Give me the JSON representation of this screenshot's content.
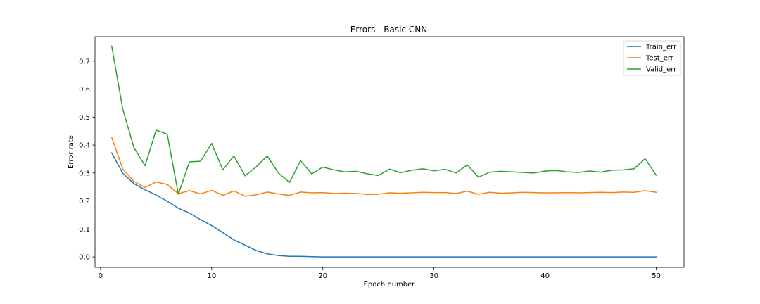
{
  "chart_data": {
    "type": "line",
    "title": "Errors - Basic CNN",
    "xlabel": "Epoch number",
    "ylabel": "Error rate",
    "xlim": [
      -0.5,
      52.5
    ],
    "ylim": [
      -0.0375,
      0.7875
    ],
    "xticks": [
      0,
      10,
      20,
      30,
      40,
      50
    ],
    "yticks": [
      0.0,
      0.1,
      0.2,
      0.3,
      0.4,
      0.5,
      0.6,
      0.7
    ],
    "ytick_labels": [
      "0.0",
      "0.1",
      "0.2",
      "0.3",
      "0.4",
      "0.5",
      "0.6",
      "0.7"
    ],
    "grid": false,
    "legend_position": "top-right",
    "x": [
      1,
      2,
      3,
      4,
      5,
      6,
      7,
      8,
      9,
      10,
      11,
      12,
      13,
      14,
      15,
      16,
      17,
      18,
      19,
      20,
      21,
      22,
      23,
      24,
      25,
      26,
      27,
      28,
      29,
      30,
      31,
      32,
      33,
      34,
      35,
      36,
      37,
      38,
      39,
      40,
      41,
      42,
      43,
      44,
      45,
      46,
      47,
      48,
      49,
      50
    ],
    "series": [
      {
        "name": "Train_err",
        "color": "#1f77b4",
        "values": [
          0.372,
          0.299,
          0.262,
          0.24,
          0.221,
          0.199,
          0.174,
          0.157,
          0.133,
          0.112,
          0.087,
          0.061,
          0.042,
          0.023,
          0.011,
          0.005,
          0.002,
          0.002,
          0.001,
          0.0,
          0.0,
          0.0,
          0.0,
          0.0,
          0.0,
          0.0,
          0.0,
          0.0,
          0.0,
          0.0,
          0.0,
          0.0,
          0.0,
          0.0,
          0.0,
          0.0,
          0.0,
          0.0,
          0.0,
          0.0,
          0.0,
          0.0,
          0.0,
          0.0,
          0.0,
          0.0,
          0.0,
          0.0,
          0.0,
          0.0
        ]
      },
      {
        "name": "Test_err",
        "color": "#ff7f0e",
        "values": [
          0.428,
          0.314,
          0.27,
          0.248,
          0.268,
          0.259,
          0.226,
          0.237,
          0.225,
          0.238,
          0.22,
          0.236,
          0.217,
          0.222,
          0.232,
          0.225,
          0.22,
          0.232,
          0.229,
          0.23,
          0.227,
          0.228,
          0.227,
          0.223,
          0.224,
          0.229,
          0.228,
          0.229,
          0.231,
          0.23,
          0.23,
          0.227,
          0.235,
          0.224,
          0.231,
          0.228,
          0.229,
          0.231,
          0.23,
          0.229,
          0.229,
          0.23,
          0.229,
          0.23,
          0.231,
          0.23,
          0.232,
          0.231,
          0.237,
          0.231
        ]
      },
      {
        "name": "Valid_err",
        "color": "#2ca02c",
        "values": [
          0.754,
          0.528,
          0.391,
          0.326,
          0.453,
          0.439,
          0.224,
          0.34,
          0.342,
          0.406,
          0.311,
          0.361,
          0.29,
          0.322,
          0.361,
          0.3,
          0.266,
          0.344,
          0.297,
          0.321,
          0.311,
          0.304,
          0.306,
          0.297,
          0.291,
          0.314,
          0.301,
          0.31,
          0.315,
          0.308,
          0.313,
          0.3,
          0.329,
          0.285,
          0.303,
          0.306,
          0.304,
          0.302,
          0.3,
          0.307,
          0.309,
          0.304,
          0.302,
          0.307,
          0.303,
          0.31,
          0.311,
          0.315,
          0.351,
          0.292
        ]
      }
    ]
  }
}
